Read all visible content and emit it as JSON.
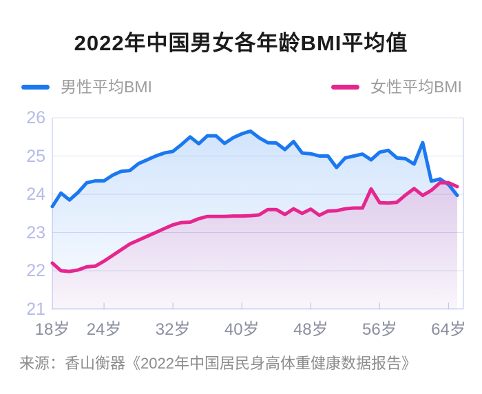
{
  "title": "2022年中国男女各年龄BMI平均值",
  "legend": [
    {
      "label": "男性平均BMI",
      "color": "#1a78f0"
    },
    {
      "label": "女性平均BMI",
      "color": "#e6258f"
    }
  ],
  "source": "来源：香山衡器《2022年中国居民身高体重健康数据报告》",
  "colors": {
    "male_line": "#1a78f0",
    "female_line": "#e6258f",
    "grid": "#dcdff1",
    "axis": "#c2cdf2",
    "y_tick_label": "#b5bbe7",
    "x_tick_label": "#8b8f9f",
    "title": "#1b1b1b",
    "legend_text": "#9c9c9c",
    "source_text": "#8c8c8c"
  },
  "chart_data": {
    "type": "line",
    "title": "2022年中国男女各年龄BMI平均值",
    "xlabel": "",
    "ylabel": "",
    "ylim": [
      21,
      26
    ],
    "grid": true,
    "legend_position": "top",
    "ages": [
      18,
      19,
      20,
      21,
      22,
      23,
      24,
      25,
      26,
      27,
      28,
      29,
      30,
      31,
      32,
      33,
      34,
      35,
      36,
      37,
      38,
      39,
      40,
      41,
      42,
      43,
      44,
      45,
      46,
      47,
      48,
      49,
      50,
      51,
      52,
      53,
      54,
      55,
      56,
      57,
      58,
      59,
      60,
      61,
      62,
      63,
      64,
      65
    ],
    "series": [
      {
        "name": "男性平均BMI",
        "color": "#1a78f0",
        "values": [
          23.68,
          24.03,
          23.85,
          24.05,
          24.3,
          24.35,
          24.35,
          24.5,
          24.6,
          24.62,
          24.8,
          24.9,
          25.0,
          25.08,
          25.12,
          25.3,
          25.5,
          25.32,
          25.53,
          25.53,
          25.33,
          25.48,
          25.58,
          25.65,
          25.48,
          25.35,
          25.34,
          25.17,
          25.38,
          25.08,
          25.06,
          25.0,
          25.0,
          24.7,
          24.95,
          25.0,
          25.05,
          24.9,
          25.1,
          25.15,
          24.95,
          24.93,
          24.79,
          25.35,
          24.34,
          24.4,
          24.25,
          23.97
        ]
      },
      {
        "name": "女性平均BMI",
        "color": "#e6258f",
        "values": [
          22.2,
          22.0,
          21.98,
          22.02,
          22.1,
          22.12,
          22.25,
          22.4,
          22.55,
          22.7,
          22.8,
          22.9,
          23.0,
          23.1,
          23.2,
          23.26,
          23.27,
          23.36,
          23.42,
          23.42,
          23.42,
          23.43,
          23.43,
          23.44,
          23.46,
          23.6,
          23.6,
          23.47,
          23.62,
          23.5,
          23.61,
          23.45,
          23.56,
          23.57,
          23.62,
          23.64,
          23.64,
          24.14,
          23.78,
          23.77,
          23.79,
          23.98,
          24.15,
          23.97,
          24.1,
          24.3,
          24.3,
          24.2
        ]
      }
    ],
    "y_grid": [
      22,
      23,
      24,
      25,
      26
    ],
    "y_ticks_desc": [
      26,
      25,
      24,
      23,
      22,
      21
    ],
    "y_tick_labels": [
      "26",
      "25",
      "24",
      "23",
      "22",
      "21"
    ],
    "x_tick_labels": [
      {
        "age": 18,
        "label": "18岁"
      },
      {
        "age": 24,
        "label": "24岁"
      },
      {
        "age": 32,
        "label": "32岁"
      },
      {
        "age": 40,
        "label": "40岁"
      },
      {
        "age": 48,
        "label": "48岁"
      },
      {
        "age": 56,
        "label": "56岁"
      },
      {
        "age": 64,
        "label": "64岁"
      }
    ]
  }
}
